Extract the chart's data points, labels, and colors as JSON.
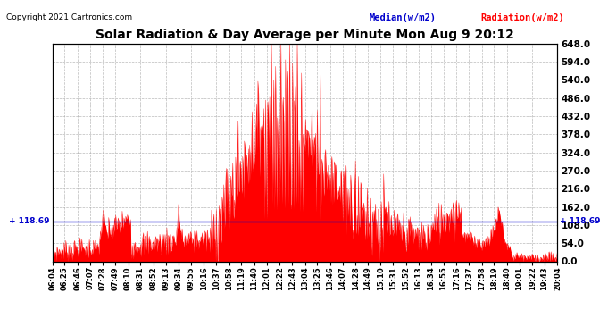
{
  "title": "Solar Radiation & Day Average per Minute Mon Aug 9 20:12",
  "copyright": "Copyright 2021 Cartronics.com",
  "legend_median": "Median(w/m2)",
  "legend_radiation": "Radiation(w/m2)",
  "median_value": 118.69,
  "ymin": 0.0,
  "ymax": 648.0,
  "yticks": [
    0.0,
    54.0,
    108.0,
    162.0,
    216.0,
    270.0,
    324.0,
    378.0,
    432.0,
    486.0,
    540.0,
    594.0,
    648.0
  ],
  "background_color": "#ffffff",
  "grid_color": "#aaaaaa",
  "radiation_color": "#ff0000",
  "median_color": "#0000cc",
  "title_color": "#000000",
  "copyright_color": "#000000",
  "legend_median_color": "#0000cc",
  "legend_radiation_color": "#ff0000",
  "x_tick_labels": [
    "06:04",
    "06:25",
    "06:46",
    "07:07",
    "07:28",
    "07:49",
    "08:10",
    "08:31",
    "08:52",
    "09:13",
    "09:34",
    "09:55",
    "10:16",
    "10:37",
    "10:58",
    "11:19",
    "11:40",
    "12:01",
    "12:22",
    "12:43",
    "13:04",
    "13:25",
    "13:46",
    "14:07",
    "14:28",
    "14:49",
    "15:10",
    "15:31",
    "15:52",
    "16:13",
    "16:34",
    "16:55",
    "17:16",
    "17:37",
    "17:58",
    "18:19",
    "18:40",
    "19:01",
    "19:22",
    "19:43",
    "20:04"
  ],
  "num_points": 861,
  "figwidth": 6.9,
  "figheight": 3.75,
  "dpi": 100
}
